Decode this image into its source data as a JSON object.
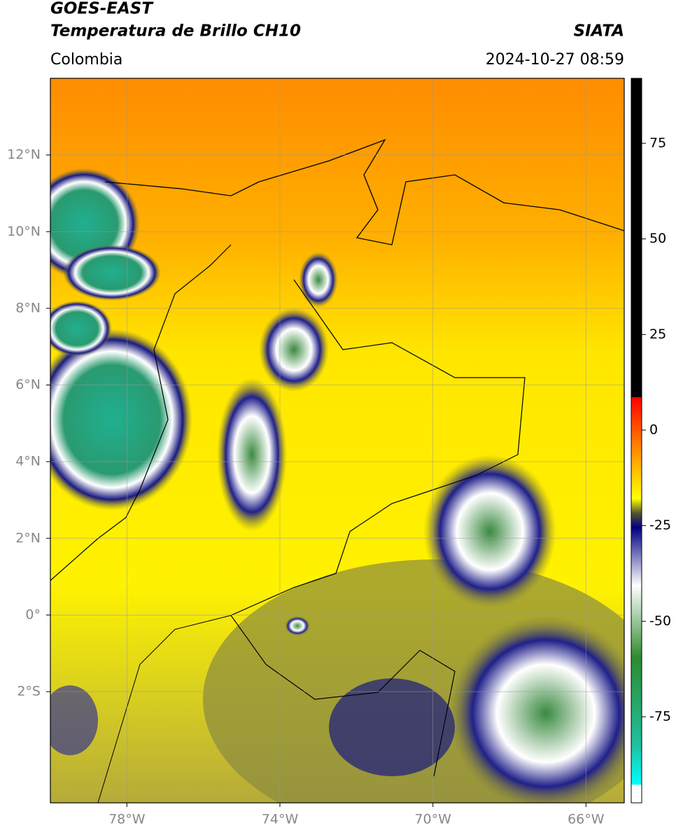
{
  "header": {
    "title": "GOES-EAST",
    "subtitle": "Temperatura de Brillo CH10",
    "source": "SIATA",
    "region": "Colombia",
    "timestamp": "2024-10-27 08:59"
  },
  "map": {
    "xlim": [
      -80,
      -65
    ],
    "ylim": [
      -4.9,
      14
    ],
    "grid": true,
    "xticks": [
      {
        "value": -78,
        "label": "78°W"
      },
      {
        "value": -74,
        "label": "74°W"
      },
      {
        "value": -70,
        "label": "70°W"
      },
      {
        "value": -66,
        "label": "66°W"
      }
    ],
    "yticks": [
      {
        "value": 12,
        "label": "12°N"
      },
      {
        "value": 10,
        "label": "10°N"
      },
      {
        "value": 8,
        "label": "8°N"
      },
      {
        "value": 6,
        "label": "6°N"
      },
      {
        "value": 4,
        "label": "4°N"
      },
      {
        "value": 2,
        "label": "2°N"
      },
      {
        "value": 0,
        "label": "0°"
      },
      {
        "value": -2,
        "label": "2°S"
      }
    ]
  },
  "colorbar": {
    "lim": [
      -97.5,
      92
    ],
    "ticks": [
      75,
      50,
      25,
      0,
      -25,
      -50,
      -75
    ]
  }
}
